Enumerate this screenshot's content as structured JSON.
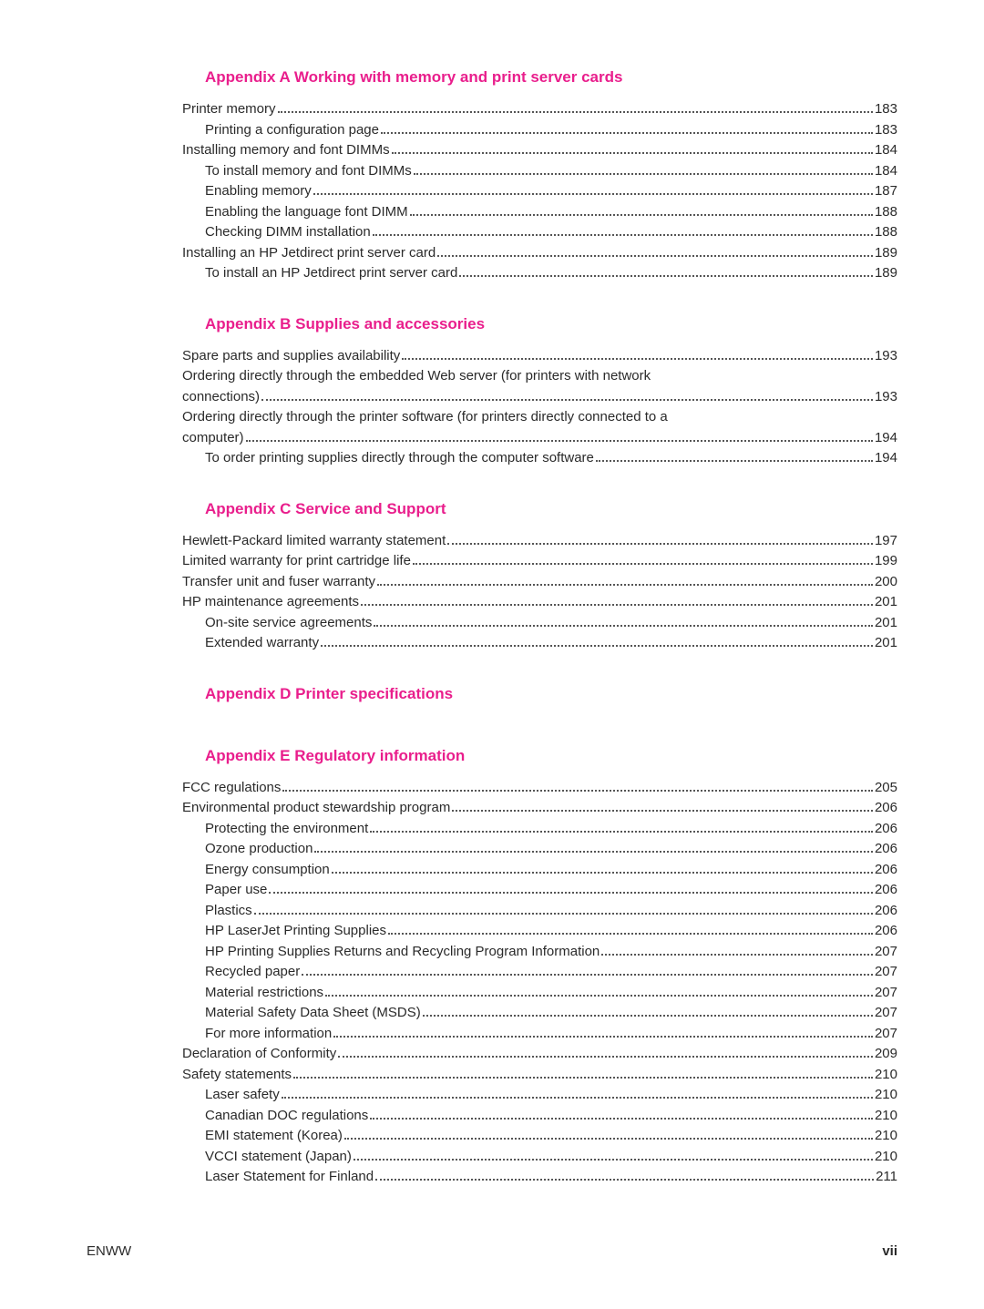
{
  "sections": [
    {
      "heading": "Appendix A  Working with memory and print server cards",
      "items": [
        {
          "label": "Printer memory",
          "page": "183",
          "indent": 0
        },
        {
          "label": "Printing a configuration page",
          "page": "183",
          "indent": 1
        },
        {
          "label": "Installing memory and font DIMMs",
          "page": "184",
          "indent": 0
        },
        {
          "label": "To install memory and font DIMMs",
          "page": "184",
          "indent": 1
        },
        {
          "label": "Enabling memory",
          "page": "187",
          "indent": 1
        },
        {
          "label": "Enabling the language font DIMM",
          "page": "188",
          "indent": 1
        },
        {
          "label": "Checking DIMM installation",
          "page": "188",
          "indent": 1
        },
        {
          "label": "Installing an HP Jetdirect print server card",
          "page": "189",
          "indent": 0
        },
        {
          "label": "To install an HP Jetdirect print server card",
          "page": "189",
          "indent": 1
        }
      ]
    },
    {
      "heading": "Appendix B  Supplies and accessories",
      "items": [
        {
          "label": "Spare parts and supplies availability",
          "page": "193",
          "indent": 0
        },
        {
          "label": "Ordering directly through the embedded Web server (for printers with network connections)",
          "page": "193",
          "indent": 0
        },
        {
          "label": "Ordering directly through the printer software (for printers directly connected to a computer)",
          "page": "194",
          "indent": 0
        },
        {
          "label": "To order printing supplies directly through the computer software",
          "page": "194",
          "indent": 1
        }
      ]
    },
    {
      "heading": "Appendix C  Service and Support",
      "items": [
        {
          "label": "Hewlett-Packard limited warranty statement",
          "page": "197",
          "indent": 0
        },
        {
          "label": "Limited warranty for print cartridge life",
          "page": "199",
          "indent": 0
        },
        {
          "label": "Transfer unit and fuser warranty",
          "page": "200",
          "indent": 0
        },
        {
          "label": "HP maintenance agreements",
          "page": "201",
          "indent": 0
        },
        {
          "label": "On-site service agreements",
          "page": "201",
          "indent": 1
        },
        {
          "label": "Extended warranty",
          "page": "201",
          "indent": 1
        }
      ]
    },
    {
      "heading": "Appendix D  Printer specifications",
      "items": []
    },
    {
      "heading": "Appendix E  Regulatory information",
      "items": [
        {
          "label": "FCC regulations",
          "page": "205",
          "indent": 0
        },
        {
          "label": "Environmental product stewardship program",
          "page": "206",
          "indent": 0
        },
        {
          "label": "Protecting the environment",
          "page": "206",
          "indent": 1
        },
        {
          "label": "Ozone production",
          "page": "206",
          "indent": 1
        },
        {
          "label": "Energy consumption",
          "page": "206",
          "indent": 1
        },
        {
          "label": "Paper use",
          "page": "206",
          "indent": 1
        },
        {
          "label": "Plastics",
          "page": "206",
          "indent": 1
        },
        {
          "label": "HP LaserJet Printing Supplies",
          "page": "206",
          "indent": 1
        },
        {
          "label": "HP Printing Supplies Returns and Recycling Program Information",
          "page": "207",
          "indent": 1
        },
        {
          "label": "Recycled paper",
          "page": "207",
          "indent": 1
        },
        {
          "label": "Material restrictions",
          "page": "207",
          "indent": 1
        },
        {
          "label": "Material Safety Data Sheet (MSDS)",
          "page": "207",
          "indent": 1
        },
        {
          "label": "For more information",
          "page": "207",
          "indent": 1
        },
        {
          "label": "Declaration of Conformity",
          "page": "209",
          "indent": 0
        },
        {
          "label": "Safety statements",
          "page": "210",
          "indent": 0
        },
        {
          "label": "Laser safety",
          "page": "210",
          "indent": 1
        },
        {
          "label": "Canadian DOC regulations",
          "page": "210",
          "indent": 1
        },
        {
          "label": "EMI statement (Korea)",
          "page": "210",
          "indent": 1
        },
        {
          "label": "VCCI statement (Japan)",
          "page": "210",
          "indent": 1
        },
        {
          "label": "Laser Statement for Finland",
          "page": "211",
          "indent": 1
        }
      ]
    }
  ],
  "footer": {
    "left": "ENWW",
    "right": "vii"
  }
}
